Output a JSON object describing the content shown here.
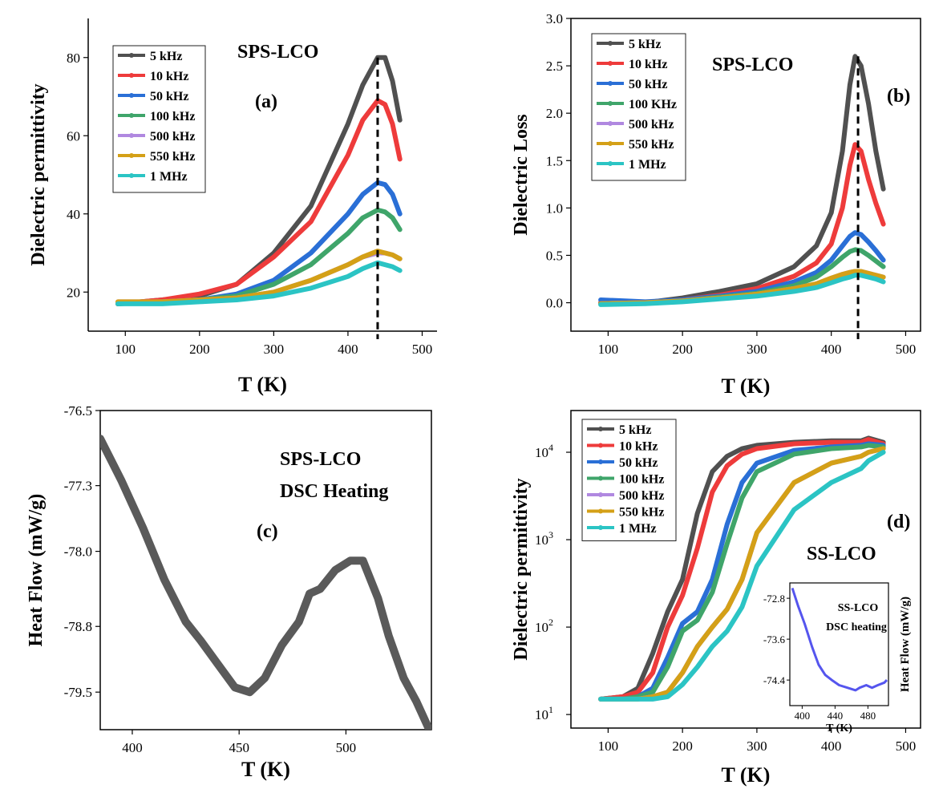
{
  "colors": {
    "5kHz": "#505050",
    "10kHz": "#ee3b3b",
    "50kHz": "#2a6fd6",
    "100kHz": "#3fa56a",
    "500kHz": "#b088e0",
    "550kHz": "#d4a017",
    "1MHz": "#2bc4c4",
    "dsc": "#5a5a5a",
    "inset": "#5555ee"
  },
  "chart_data": [
    {
      "panel": "a",
      "type": "line",
      "panel_label": "(a)",
      "annotation": "SPS-LCO",
      "xlabel": "T (K)",
      "ylabel": "Dielectric permittivity",
      "xlim": [
        50,
        520
      ],
      "ylim": [
        10,
        90
      ],
      "xticks": [
        100,
        200,
        300,
        400,
        500
      ],
      "yticks": [
        20,
        40,
        60,
        80
      ],
      "yticklabels": [
        "20",
        "40",
        "60",
        "80"
      ],
      "vline": 440,
      "legend_labels": [
        "5 kHz",
        "10 kHz",
        "50 kHz",
        "100 kHz",
        "500 kHz",
        "550 kHz",
        "1 MHz"
      ],
      "series": [
        {
          "name": "5 kHz",
          "x": [
            90,
            150,
            200,
            250,
            300,
            350,
            400,
            420,
            440,
            450,
            460,
            470
          ],
          "y": [
            17,
            18,
            19,
            22,
            30,
            42,
            63,
            73,
            80,
            80,
            74,
            64
          ]
        },
        {
          "name": "10 kHz",
          "x": [
            90,
            150,
            200,
            250,
            300,
            350,
            400,
            420,
            440,
            450,
            460,
            470
          ],
          "y": [
            17,
            18,
            19.5,
            22,
            29,
            38,
            55,
            64,
            69,
            68,
            63,
            54
          ]
        },
        {
          "name": "50 kHz",
          "x": [
            90,
            150,
            200,
            250,
            300,
            350,
            400,
            420,
            440,
            450,
            460,
            470
          ],
          "y": [
            17,
            17.5,
            18,
            19.5,
            23,
            30,
            40,
            45,
            48,
            47.5,
            45,
            40
          ]
        },
        {
          "name": "100 kHz",
          "x": [
            90,
            150,
            200,
            250,
            300,
            350,
            400,
            420,
            440,
            450,
            460,
            470
          ],
          "y": [
            17,
            17.5,
            18,
            19,
            22,
            27,
            35,
            39,
            41,
            40.5,
            39,
            36
          ]
        },
        {
          "name": "500 kHz",
          "x": [
            90,
            150,
            200,
            250,
            300,
            350,
            400,
            420,
            440,
            450,
            460,
            470
          ],
          "y": [
            17.5,
            17.5,
            18,
            18.5,
            20,
            23,
            27,
            29,
            30,
            30,
            29.5,
            28.5
          ]
        },
        {
          "name": "550 kHz",
          "x": [
            90,
            150,
            200,
            250,
            300,
            350,
            400,
            420,
            440,
            450,
            460,
            470
          ],
          "y": [
            17.5,
            17.5,
            18,
            18.5,
            20,
            23,
            27,
            29,
            30.5,
            30,
            29.5,
            28.5
          ]
        },
        {
          "name": "1 MHz",
          "x": [
            90,
            150,
            200,
            250,
            300,
            350,
            400,
            420,
            440,
            450,
            460,
            470
          ],
          "y": [
            17,
            17,
            17.5,
            18,
            19,
            21,
            24,
            26,
            27.5,
            27,
            26.5,
            25.5
          ]
        }
      ]
    },
    {
      "panel": "b",
      "type": "line",
      "panel_label": "(b)",
      "annotation": "SPS-LCO",
      "xlabel": "T (K)",
      "ylabel": "Dielectric Loss",
      "xlim": [
        50,
        520
      ],
      "ylim": [
        -0.3,
        3.0
      ],
      "xticks": [
        100,
        200,
        300,
        400,
        500
      ],
      "yticks": [
        0.0,
        0.5,
        1.0,
        1.5,
        2.0,
        2.5,
        3.0
      ],
      "yticklabels": [
        "0.0",
        "0.5",
        "1.0",
        "1.5",
        "2.0",
        "2.5",
        "3.0"
      ],
      "vline": 436,
      "legend_labels": [
        "5 kHz",
        "10 kHz",
        "50 kHz",
        "100 KHz",
        "500 kHz",
        "550 kHz",
        "1 MHz"
      ],
      "series": [
        {
          "name": "5 kHz",
          "x": [
            90,
            150,
            200,
            250,
            300,
            350,
            380,
            400,
            415,
            425,
            432,
            440,
            450,
            460,
            470
          ],
          "y": [
            0,
            0,
            0.05,
            0.12,
            0.2,
            0.38,
            0.6,
            0.95,
            1.6,
            2.3,
            2.6,
            2.5,
            2.1,
            1.6,
            1.2
          ]
        },
        {
          "name": "10 kHz",
          "x": [
            90,
            150,
            200,
            250,
            300,
            350,
            380,
            400,
            415,
            425,
            432,
            440,
            450,
            460,
            470
          ],
          "y": [
            0,
            0,
            0.03,
            0.08,
            0.15,
            0.28,
            0.42,
            0.62,
            1.0,
            1.45,
            1.67,
            1.6,
            1.3,
            1.05,
            0.83
          ]
        },
        {
          "name": "50 kHz",
          "x": [
            90,
            150,
            200,
            250,
            300,
            350,
            380,
            400,
            415,
            425,
            432,
            440,
            450,
            460,
            470
          ],
          "y": [
            0.03,
            0.01,
            0.03,
            0.07,
            0.12,
            0.22,
            0.32,
            0.45,
            0.6,
            0.7,
            0.74,
            0.72,
            0.64,
            0.55,
            0.45
          ]
        },
        {
          "name": "100 KHz",
          "x": [
            90,
            150,
            200,
            250,
            300,
            350,
            380,
            400,
            415,
            425,
            432,
            440,
            450,
            460,
            470
          ],
          "y": [
            -0.01,
            0,
            0.02,
            0.06,
            0.1,
            0.18,
            0.27,
            0.38,
            0.48,
            0.54,
            0.56,
            0.55,
            0.5,
            0.44,
            0.38
          ]
        },
        {
          "name": "500 kHz",
          "x": [
            90,
            150,
            200,
            250,
            300,
            350,
            380,
            400,
            415,
            425,
            432,
            440,
            450,
            460,
            470
          ],
          "y": [
            -0.01,
            0,
            0.02,
            0.05,
            0.09,
            0.15,
            0.2,
            0.26,
            0.3,
            0.32,
            0.33,
            0.33,
            0.31,
            0.29,
            0.27
          ]
        },
        {
          "name": "550 kHz",
          "x": [
            90,
            150,
            200,
            250,
            300,
            350,
            380,
            400,
            415,
            425,
            432,
            440,
            450,
            460,
            470
          ],
          "y": [
            -0.01,
            0,
            0.02,
            0.05,
            0.09,
            0.15,
            0.2,
            0.26,
            0.3,
            0.32,
            0.33,
            0.33,
            0.31,
            0.29,
            0.27
          ]
        },
        {
          "name": "1 MHz",
          "x": [
            90,
            150,
            200,
            250,
            300,
            350,
            380,
            400,
            415,
            425,
            432,
            440,
            450,
            460,
            470
          ],
          "y": [
            -0.02,
            -0.01,
            0.01,
            0.04,
            0.07,
            0.12,
            0.16,
            0.21,
            0.25,
            0.27,
            0.29,
            0.29,
            0.27,
            0.25,
            0.22
          ]
        }
      ]
    },
    {
      "panel": "c",
      "type": "line",
      "panel_label": "(c)",
      "annotation_lines": [
        "SPS-LCO",
        "DSC Heating"
      ],
      "xlabel": "T (K)",
      "ylabel": "Heat Flow (mW/g)",
      "xlim": [
        385,
        540
      ],
      "ylim": [
        -79.9,
        -76.5
      ],
      "xticks": [
        400,
        450,
        500
      ],
      "yticks": [
        -79.5,
        -78.8,
        -78.0,
        -77.3,
        -76.5
      ],
      "yticklabels": [
        "-79.5",
        "-78.8",
        "-78.0",
        "-77.3",
        "-76.5"
      ],
      "series": [
        {
          "name": "DSC Heating",
          "x": [
            385,
            395,
            405,
            415,
            425,
            432,
            440,
            448,
            455,
            462,
            470,
            478,
            483,
            488,
            495,
            502,
            508,
            515,
            520,
            527,
            533,
            540
          ],
          "y": [
            -76.8,
            -77.25,
            -77.75,
            -78.3,
            -78.75,
            -78.95,
            -79.2,
            -79.45,
            -79.5,
            -79.35,
            -79.0,
            -78.75,
            -78.45,
            -78.4,
            -78.2,
            -78.1,
            -78.1,
            -78.5,
            -78.9,
            -79.35,
            -79.6,
            -79.95
          ]
        }
      ]
    },
    {
      "panel": "d",
      "type": "line",
      "scale_y": "log",
      "panel_label": "(d)",
      "annotation": "SS-LCO",
      "xlabel": "T (K)",
      "ylabel": "Dielectric permittivity",
      "xlim": [
        50,
        520
      ],
      "ylim": [
        7,
        30000
      ],
      "xticks": [
        100,
        200,
        300,
        400,
        500
      ],
      "yticks": [
        10,
        100,
        1000,
        10000
      ],
      "yticklabels": [
        "10",
        "10",
        "10",
        "10"
      ],
      "ytick_exponents": [
        "1",
        "2",
        "3",
        "4"
      ],
      "legend_labels": [
        "5 kHz",
        "10 kHz",
        "50 kHz",
        "100 kHz",
        "500 kHz",
        "550 kHz",
        "1 MHz"
      ],
      "series": [
        {
          "name": "5 kHz",
          "x": [
            90,
            120,
            140,
            160,
            180,
            200,
            220,
            240,
            260,
            280,
            300,
            350,
            400,
            440,
            450,
            470
          ],
          "y": [
            15,
            16,
            20,
            50,
            150,
            350,
            2000,
            6000,
            9000,
            11000,
            12000,
            13000,
            13500,
            13500,
            14500,
            13000
          ]
        },
        {
          "name": "10 kHz",
          "x": [
            90,
            120,
            140,
            160,
            180,
            200,
            220,
            240,
            260,
            280,
            300,
            350,
            400,
            440,
            450,
            470
          ],
          "y": [
            15,
            16,
            18,
            30,
            100,
            230,
            800,
            3500,
            7000,
            9500,
            11000,
            12500,
            13000,
            13000,
            14000,
            12500
          ]
        },
        {
          "name": "50 kHz",
          "x": [
            90,
            120,
            140,
            160,
            180,
            200,
            220,
            240,
            260,
            280,
            300,
            350,
            400,
            440,
            450,
            470
          ],
          "y": [
            15,
            15,
            16,
            20,
            45,
            110,
            150,
            350,
            1500,
            4500,
            7500,
            10500,
            11500,
            12000,
            12500,
            12000
          ]
        },
        {
          "name": "100 kHz",
          "x": [
            90,
            120,
            140,
            160,
            180,
            200,
            220,
            240,
            260,
            280,
            300,
            350,
            400,
            440,
            450,
            470
          ],
          "y": [
            15,
            15,
            16,
            18,
            35,
            90,
            120,
            250,
            900,
            3000,
            6000,
            9500,
            11000,
            11500,
            12000,
            11500
          ]
        },
        {
          "name": "500 kHz",
          "x": [
            90,
            120,
            140,
            160,
            180,
            200,
            220,
            240,
            260,
            280,
            300,
            350,
            400,
            440,
            450,
            470
          ],
          "y": [
            15,
            15,
            15,
            16,
            18,
            30,
            60,
            100,
            160,
            350,
            1200,
            4500,
            7500,
            9000,
            10000,
            11000
          ]
        },
        {
          "name": "550 kHz",
          "x": [
            90,
            120,
            140,
            160,
            180,
            200,
            220,
            240,
            260,
            280,
            300,
            350,
            400,
            440,
            450,
            470
          ],
          "y": [
            15,
            15,
            15,
            16,
            18,
            30,
            60,
            100,
            160,
            350,
            1200,
            4500,
            7500,
            9000,
            10000,
            11000
          ]
        },
        {
          "name": "1 MHz",
          "x": [
            90,
            120,
            140,
            160,
            180,
            200,
            220,
            240,
            260,
            280,
            300,
            350,
            400,
            440,
            450,
            470
          ],
          "y": [
            15,
            15,
            15,
            15,
            16,
            22,
            35,
            60,
            90,
            170,
            500,
            2200,
            4500,
            6500,
            8000,
            10000
          ]
        }
      ],
      "inset": {
        "annotation_lines": [
          "SS-LCO",
          "DSC heating"
        ],
        "xlabel": "T (K)",
        "ylabel": "Heat Flow (mW/g)",
        "xlim": [
          385,
          505
        ],
        "ylim": [
          -74.9,
          -72.5
        ],
        "xticks": [
          400,
          440,
          480
        ],
        "yticks": [
          -72.8,
          -73.6,
          -74.4
        ],
        "yticklabels": [
          "-72.8",
          "-73.6",
          "-74.4"
        ],
        "series": {
          "name": "DSC heating",
          "x": [
            388,
            395,
            403,
            412,
            420,
            428,
            436,
            445,
            455,
            465,
            470,
            478,
            485,
            492,
            500,
            503
          ],
          "y": [
            -72.6,
            -72.95,
            -73.3,
            -73.75,
            -74.1,
            -74.3,
            -74.4,
            -74.5,
            -74.55,
            -74.6,
            -74.55,
            -74.5,
            -74.55,
            -74.5,
            -74.45,
            -74.4
          ]
        }
      }
    }
  ]
}
